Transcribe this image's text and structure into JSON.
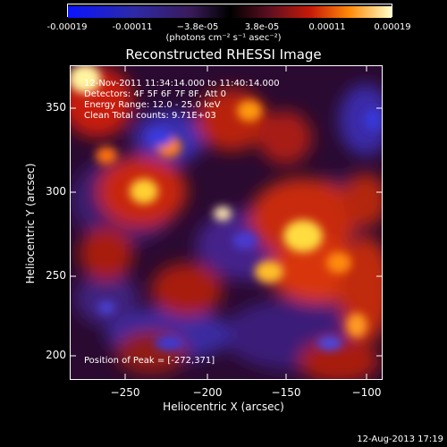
{
  "colorbar": {
    "ticks": [
      "-0.00019",
      "-0.00011",
      "−3.8e-05",
      "3.8e-05",
      "0.00011",
      "0.00019"
    ],
    "units": "(photons cm⁻² s⁻¹ asec⁻²)"
  },
  "title": "Reconstructed RHESSI Image",
  "axes": {
    "xlabel": "Heliocentric X (arcsec)",
    "ylabel": "Heliocentric Y (arcsec)",
    "xticks": [
      "−250",
      "−200",
      "−150",
      "−100"
    ],
    "yticks": [
      "350",
      "300",
      "250",
      "200"
    ]
  },
  "info": {
    "time": "12-Nov-2011 11:34:14.000 to 11:40:14.000",
    "detectors": "Detectors: 4F 5F 6F 7F 8F, Att 0",
    "energy": "Energy Range: 12.0 - 25.0 keV",
    "clean": "Clean     Total counts: 9.71E+03"
  },
  "peak": "Position of Peak = [-272,371]",
  "date_stamp": "12-Aug-2013 17:19"
}
